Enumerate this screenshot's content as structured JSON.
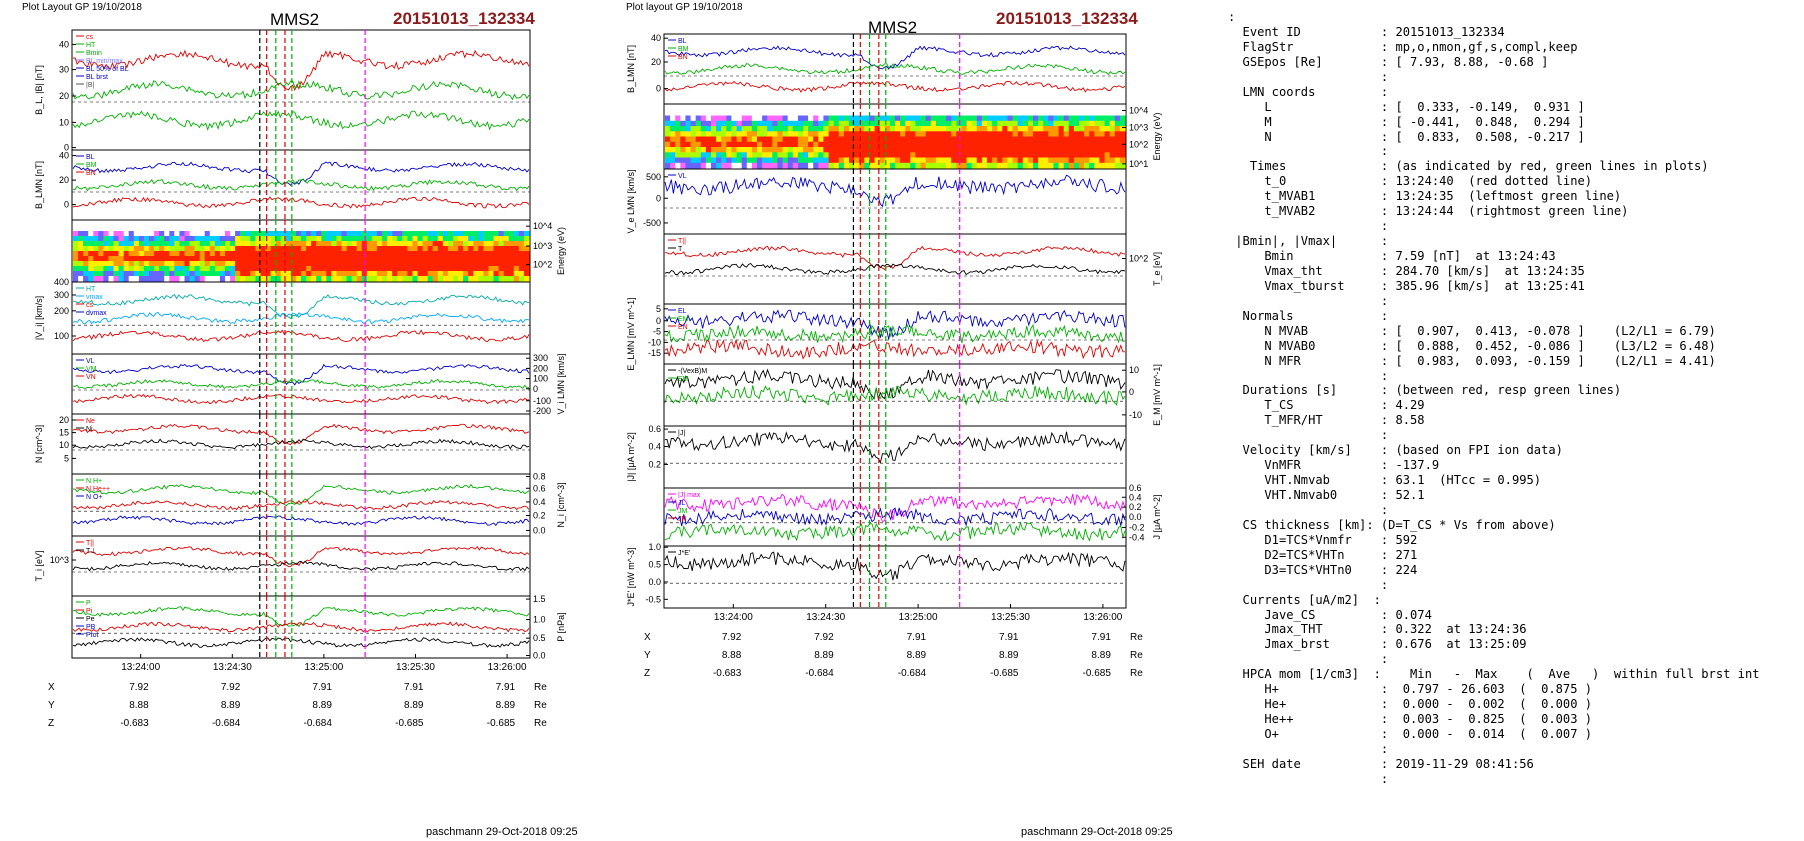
{
  "left": {
    "header": "Plot Layout GP 19/10/2018",
    "spacecraft": "MMS2",
    "event": "20151013_132334",
    "footer": "paschmann 29-Oct-2018 09:25",
    "panels": [
      {
        "id": "L1",
        "ylabel": "B_L, |B| [nT]",
        "legend": [
          {
            "t": "cs",
            "c": "#e00000"
          },
          {
            "t": "HT",
            "c": "#00b000"
          },
          {
            "t": "Bmin",
            "c": "#00b000"
          },
          {
            "t": "BL min/max",
            "c": "#7777ff"
          },
          {
            "t": "BL 50% of BL",
            "c": "#0000cc"
          },
          {
            "t": "BL brst",
            "c": "#0000cc"
          },
          {
            "t": "|B|",
            "c": "#555555"
          }
        ],
        "ticks": [
          {
            "v": "40",
            "f": 0.12
          },
          {
            "v": "30",
            "f": 0.33
          },
          {
            "v": "20",
            "f": 0.55
          },
          {
            "v": "10",
            "f": 0.77
          },
          {
            "v": "0",
            "f": 0.98
          }
        ],
        "side": "left"
      },
      {
        "id": "L2",
        "ylabel": "B_LMN [nT]",
        "legend": [
          {
            "t": "BL",
            "c": "#0000cc"
          },
          {
            "t": "BM",
            "c": "#00b000"
          },
          {
            "t": "BN",
            "c": "#e00000"
          }
        ],
        "ticks": [
          {
            "v": "40",
            "f": 0.08
          },
          {
            "v": "20",
            "f": 0.43
          },
          {
            "v": "0",
            "f": 0.78
          }
        ],
        "side": "left"
      },
      {
        "id": "L3",
        "ylabel": "Energy (eV)",
        "legend": [],
        "ticks": [
          {
            "v": "10^4",
            "f": 0.1
          },
          {
            "v": "10^3",
            "f": 0.42
          },
          {
            "v": "10^2",
            "f": 0.72
          }
        ],
        "side": "right"
      },
      {
        "id": "L4",
        "ylabel": "|V_i| [km/s]",
        "legend": [
          {
            "t": "HT",
            "c": "#00aaaa"
          },
          {
            "t": "vmax",
            "c": "#00aaff"
          },
          {
            "t": "cs",
            "c": "#e00000"
          },
          {
            "t": "dvmax",
            "c": "#0000cc"
          }
        ],
        "ticks": [
          {
            "v": "400",
            "f": 0.0
          },
          {
            "v": "300",
            "f": 0.18
          },
          {
            "v": "200",
            "f": 0.4
          },
          {
            "v": "100",
            "f": 0.75
          }
        ],
        "side": "left"
      },
      {
        "id": "L5",
        "ylabel": "V_i LMN [km/s]",
        "legend": [
          {
            "t": "VL",
            "c": "#0000cc"
          },
          {
            "t": "VM",
            "c": "#00b000"
          },
          {
            "t": "VN",
            "c": "#e00000"
          }
        ],
        "ticks": [
          {
            "v": "300",
            "f": 0.07
          },
          {
            "v": "200",
            "f": 0.24
          },
          {
            "v": "100",
            "f": 0.41
          },
          {
            "v": "0",
            "f": 0.58
          },
          {
            "v": "-100",
            "f": 0.78
          },
          {
            "v": "-200",
            "f": 0.95
          }
        ],
        "side": "right"
      },
      {
        "id": "L6",
        "ylabel": "N [cm^-3]",
        "legend": [
          {
            "t": "Ne",
            "c": "#e00000"
          },
          {
            "t": "Ni",
            "c": "#000000"
          }
        ],
        "ticks": [
          {
            "v": "20",
            "f": 0.1
          },
          {
            "v": "15",
            "f": 0.31
          },
          {
            "v": "10",
            "f": 0.52
          },
          {
            "v": "5",
            "f": 0.74
          }
        ],
        "side": "left"
      },
      {
        "id": "L7",
        "ylabel": "N_i [cm^-3]",
        "legend": [
          {
            "t": "N H+",
            "c": "#00b000"
          },
          {
            "t": "N He++",
            "c": "#e00000"
          },
          {
            "t": "N O+",
            "c": "#0000cc"
          }
        ],
        "ticks": [
          {
            "v": "0.8",
            "f": 0.04
          },
          {
            "v": "0.6",
            "f": 0.23
          },
          {
            "v": "0.4",
            "f": 0.45
          },
          {
            "v": "0.2",
            "f": 0.67
          },
          {
            "v": "0.0",
            "f": 0.91
          }
        ],
        "side": "right"
      },
      {
        "id": "L8",
        "ylabel": "T_i [eV]",
        "legend": [
          {
            "t": "T||",
            "c": "#e00000"
          },
          {
            "t": "T⊥",
            "c": "#000000"
          }
        ],
        "ticks": [
          {
            "v": "10^3",
            "f": 0.4
          }
        ],
        "side": "left"
      },
      {
        "id": "L9",
        "ylabel": "P [nPa]",
        "legend": [
          {
            "t": "P",
            "c": "#00b000"
          },
          {
            "t": "Pi",
            "c": "#e00000"
          },
          {
            "t": "Pe",
            "c": "#000000"
          },
          {
            "t": "PB",
            "c": "#0000cc"
          },
          {
            "t": "Ptot",
            "c": "#0000cc"
          }
        ],
        "ticks": [
          {
            "v": "1.5",
            "f": 0.05
          },
          {
            "v": "1.0",
            "f": 0.38
          },
          {
            "v": "0.5",
            "f": 0.68
          },
          {
            "v": "0.0",
            "f": 0.96
          }
        ],
        "side": "right"
      }
    ],
    "xticks": [
      "13:24:00",
      "13:24:30",
      "13:25:00",
      "13:25:30",
      "13:26:00"
    ],
    "pos": {
      "X": [
        "7.92",
        "7.92",
        "7.91",
        "7.91",
        "7.91"
      ],
      "Y": [
        "8.88",
        "8.89",
        "8.89",
        "8.89",
        "8.89"
      ],
      "Z": [
        "-0.683",
        "-0.684",
        "-0.684",
        "-0.685",
        "-0.685"
      ],
      "unit": "Re"
    }
  },
  "middle": {
    "header": "Plot layout GP 19/10/2018",
    "spacecraft": "MMS2",
    "event": "20151013_132334",
    "footer": "paschmann 29-Oct-2018 09:25",
    "panels": [
      {
        "id": "M1",
        "ylabel": "B_LMN [nT]",
        "legend": [
          {
            "t": "BL",
            "c": "#0000cc"
          },
          {
            "t": "BM",
            "c": "#00b000"
          },
          {
            "t": "BN",
            "c": "#e00000"
          }
        ],
        "ticks": [
          {
            "v": "40",
            "f": 0.06
          },
          {
            "v": "20",
            "f": 0.4
          },
          {
            "v": "0",
            "f": 0.78
          }
        ],
        "side": "left"
      },
      {
        "id": "M2",
        "ylabel": "Energy (eV)",
        "legend": [],
        "ticks": [
          {
            "v": "10^4",
            "f": 0.1
          },
          {
            "v": "10^3",
            "f": 0.36
          },
          {
            "v": "10^2",
            "f": 0.62
          },
          {
            "v": "10^1",
            "f": 0.92
          }
        ],
        "side": "right"
      },
      {
        "id": "M3",
        "ylabel": "V_e LMN [km/s]",
        "legend": [
          {
            "t": "VL",
            "c": "#0000cc"
          }
        ],
        "ticks": [
          {
            "v": "500",
            "f": 0.12
          },
          {
            "v": "0",
            "f": 0.45
          },
          {
            "v": "-500",
            "f": 0.83
          }
        ],
        "side": "left"
      },
      {
        "id": "M4",
        "ylabel": "T_e [eV]",
        "legend": [
          {
            "t": "T||",
            "c": "#e00000"
          },
          {
            "t": "T",
            "c": "#000000"
          }
        ],
        "ticks": [
          {
            "v": "10^2",
            "f": 0.35
          }
        ],
        "side": "right"
      },
      {
        "id": "M5",
        "ylabel": "E_LMN [mV m^-1]",
        "legend": [
          {
            "t": "EL",
            "c": "#0000cc"
          },
          {
            "t": "EM",
            "c": "#00b000"
          },
          {
            "t": "EN",
            "c": "#e00000"
          }
        ],
        "ticks": [
          {
            "v": "5",
            "f": 0.08
          },
          {
            "v": "0",
            "f": 0.28
          },
          {
            "v": "-5",
            "f": 0.46
          },
          {
            "v": "-10",
            "f": 0.64
          },
          {
            "v": "-15",
            "f": 0.82
          }
        ],
        "side": "left"
      },
      {
        "id": "M6",
        "ylabel": "E_M [mV m^-1]",
        "legend": [
          {
            "t": "-(VexB)M",
            "c": "#000000"
          },
          {
            "t": "EM",
            "c": "#00b000"
          }
        ],
        "ticks": [
          {
            "v": "10",
            "f": 0.1
          },
          {
            "v": "0",
            "f": 0.45
          },
          {
            "v": "-10",
            "f": 0.82
          }
        ],
        "side": "right"
      },
      {
        "id": "M7",
        "ylabel": "|J| [μA m^-2]",
        "legend": [
          {
            "t": "|J|",
            "c": "#000000"
          }
        ],
        "ticks": [
          {
            "v": "0.6",
            "f": 0.05
          },
          {
            "v": "0.4",
            "f": 0.33
          },
          {
            "v": "0.2",
            "f": 0.62
          }
        ],
        "side": "left"
      },
      {
        "id": "M8",
        "ylabel": "J [μA m^-2]",
        "legend": [
          {
            "t": "|J| max",
            "c": "#ff00ff"
          },
          {
            "t": "JL",
            "c": "#0000cc"
          },
          {
            "t": "JM",
            "c": "#00b000"
          },
          {
            "t": "JN",
            "c": "#e00000"
          }
        ],
        "ticks": [
          {
            "v": "0.6",
            "f": 0.0
          },
          {
            "v": "0.4",
            "f": 0.16
          },
          {
            "v": "0.2",
            "f": 0.33
          },
          {
            "v": "0.0",
            "f": 0.5
          },
          {
            "v": "-0.2",
            "f": 0.68
          },
          {
            "v": "-0.4",
            "f": 0.85
          }
        ],
        "side": "right"
      },
      {
        "id": "M9",
        "ylabel": "J*E' [nW m^-3]",
        "legend": [
          {
            "t": "J*E'",
            "c": "#000000"
          }
        ],
        "ticks": [
          {
            "v": "1.0",
            "f": 0.02
          },
          {
            "v": "0.5",
            "f": 0.3
          },
          {
            "v": "0.0",
            "f": 0.58
          },
          {
            "v": "-0.5",
            "f": 0.86
          }
        ],
        "side": "left"
      }
    ],
    "xticks": [
      "13:24:00",
      "13:24:30",
      "13:25:00",
      "13:25:30",
      "13:26:00"
    ],
    "pos": {
      "X": [
        "7.92",
        "7.92",
        "7.91",
        "7.91",
        "7.91"
      ],
      "Y": [
        "8.88",
        "8.89",
        "8.89",
        "8.89",
        "8.89"
      ],
      "Z": [
        "-0.683",
        "-0.684",
        "-0.684",
        "-0.685",
        "-0.685"
      ],
      "unit": "Re"
    }
  },
  "info_lines": [
    ":",
    "  Event ID           : 20151013_132334",
    "  FlagStr            : mp,o,nmon,gf,s,compl,keep",
    "  GSEpos [Re]        : [ 7.93, 8.88, -0.68 ]",
    "                     :",
    "  LMN coords         :",
    "     L               : [  0.333, -0.149,  0.931 ]",
    "     M               : [ -0.441,  0.848,  0.294 ]",
    "     N               : [  0.833,  0.508, -0.217 ]",
    "                     :",
    "   Times             : (as indicated by red, green lines in plots)",
    "     t_0             : 13:24:40  (red dotted line)",
    "     t_MVAB1         : 13:24:35  (leftmost green line)",
    "     t_MVAB2         : 13:24:44  (rightmost green line)",
    "                     :",
    " |Bmin|, |Vmax|      :",
    "     Bmin            : 7.59 [nT]  at 13:24:43",
    "     Vmax_tht        : 284.70 [km/s]  at 13:24:35",
    "     Vmax_tburst     : 385.96 [km/s]  at 13:25:41",
    "                     :",
    "  Normals            :",
    "     N MVAB          : [  0.907,  0.413, -0.078 ]    (L2/L1 = 6.79)",
    "     N MVAB0         : [  0.888,  0.452, -0.086 ]    (L3/L2 = 6.48)",
    "     N MFR           : [  0.983,  0.093, -0.159 ]    (L2/L1 = 4.41)",
    "                     :",
    "  Durations [s]      : (between red, resp green lines)",
    "     T_CS            : 4.29",
    "     T_MFR/HT        : 8.58",
    "                     :",
    "  Velocity [km/s]    : (based on FPI ion data)",
    "     VnMFR           : -137.9",
    "     VHT.Nmvab       : 63.1  (HTcc = 0.995)",
    "     VHT.Nmvab0      : 52.1",
    "                     :",
    "  CS thickness [km]: (D=T_CS * Vs from above)",
    "     D1=TCS*Vnmfr    : 592",
    "     D2=TCS*VHTn     : 271",
    "     D3=TCS*VHTn0    : 224",
    "                     :",
    "  Currents [uA/m2]  :",
    "     Jave_CS         : 0.074",
    "     Jmax_THT        : 0.322  at 13:24:36",
    "     Jmax_brst       : 0.676  at 13:25:09",
    "                     :",
    "  HPCA mom [1/cm3]  :    Min   -  Max    (  Ave   )  within full brst int",
    "     H+              :  0.797 - 26.603  (  0.875 )",
    "     He+             :  0.000 -  0.002  (  0.000 )",
    "     He++            :  0.003 -  0.825  (  0.003 )",
    "     O+              :  0.000 -  0.014  (  0.007 )",
    "                     :",
    "  SEH date           : 2019-11-29 08:41:56",
    "                     :"
  ],
  "chart_data": [
    {
      "type": "line",
      "title": "MMS2",
      "subtitle": "20151013_132334",
      "x": [
        "13:24:00",
        "13:24:30",
        "13:25:00",
        "13:25:30",
        "13:26:00"
      ],
      "series": [
        {
          "name": "BL",
          "values": [
            42,
            41,
            14,
            30,
            28
          ]
        },
        {
          "name": "|B|",
          "values": [
            44,
            43,
            20,
            31,
            29
          ]
        },
        {
          "name": "|Vi|",
          "values": [
            120,
            180,
            300,
            340,
            330
          ]
        },
        {
          "name": "Ne",
          "values": [
            6,
            7,
            15,
            17,
            19
          ]
        },
        {
          "name": "Ni",
          "values": [
            6,
            7,
            15,
            17,
            19
          ]
        },
        {
          "name": "N He++",
          "values": [
            0.05,
            0.2,
            0.6,
            0.6,
            0.45
          ]
        }
      ],
      "markers": {
        "red": [
          "13:24:40"
        ],
        "green": [
          "13:24:35",
          "13:24:44"
        ],
        "magenta": [
          "13:25:09"
        ]
      }
    },
    {
      "type": "line",
      "title": "MMS2",
      "subtitle": "20151013_132334",
      "x": [
        "13:24:00",
        "13:24:30",
        "13:25:00",
        "13:25:30",
        "13:26:00"
      ],
      "series": [
        {
          "name": "BL",
          "values": [
            40,
            41,
            15,
            30,
            28
          ]
        },
        {
          "name": "VL",
          "values": [
            -100,
            -50,
            0,
            0,
            0
          ]
        },
        {
          "name": "|J|",
          "values": [
            0.03,
            0.1,
            0.2,
            0.12,
            0.1
          ]
        },
        {
          "name": "J*E'",
          "values": [
            0.0,
            0.0,
            0.0,
            0.0,
            0.0
          ]
        }
      ],
      "markers": {
        "red": [
          "13:24:40"
        ],
        "green": [
          "13:24:35",
          "13:24:44"
        ],
        "magenta": [
          "13:25:09"
        ]
      }
    }
  ]
}
